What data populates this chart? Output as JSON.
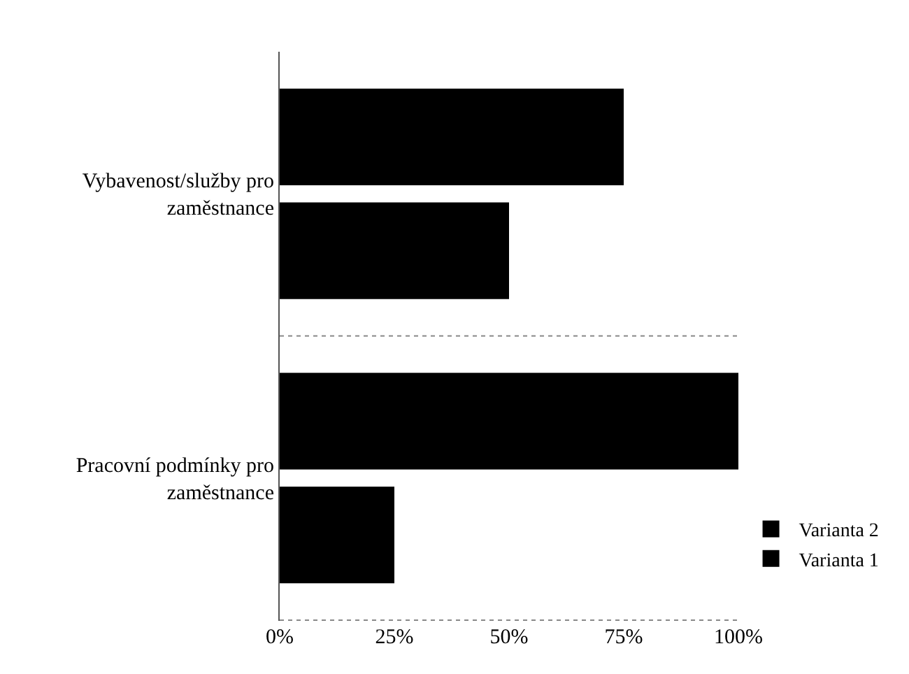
{
  "chart_data": {
    "type": "bar",
    "orientation": "horizontal",
    "categories": [
      "Vybavenost/služby pro zaměstnance",
      "Pracovní podmínky pro zaměstnance"
    ],
    "series": [
      {
        "name": "Varianta 2",
        "color": "#000000",
        "values": [
          75,
          100
        ]
      },
      {
        "name": "Varianta 1",
        "color": "#000000",
        "values": [
          50,
          25
        ]
      }
    ],
    "xlim": [
      0,
      100
    ],
    "xticks": [
      {
        "value": 0,
        "label": "0%"
      },
      {
        "value": 25,
        "label": "25%"
      },
      {
        "value": 50,
        "label": "50%"
      },
      {
        "value": 75,
        "label": "75%"
      },
      {
        "value": 100,
        "label": "100%"
      }
    ],
    "grid": "y",
    "legend": "bottom right"
  }
}
